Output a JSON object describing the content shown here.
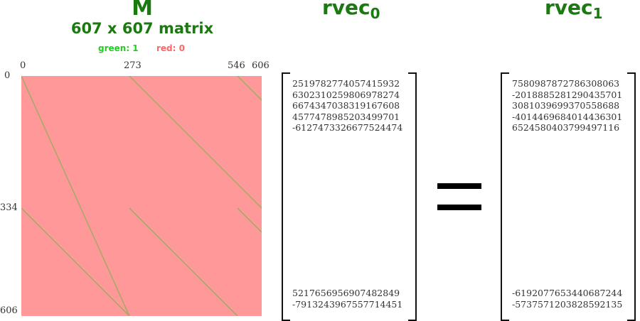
{
  "matrix": {
    "name": "M",
    "dimensions": "607 x 607 matrix",
    "legend": {
      "green_label": "green: 1",
      "red_label": "red: 0"
    },
    "colors": {
      "zero": "#ff9999",
      "one": "#a8a86a",
      "title": "#1a7a10",
      "legend_green": "#22cc22",
      "legend_red": "#ff6666"
    },
    "col_ticks": [
      "0",
      "273",
      "546",
      "606"
    ],
    "row_ticks": [
      "0",
      "334",
      "606"
    ]
  },
  "vectors": [
    {
      "name": "rvec",
      "subscript": "0",
      "top_values": "2519782774057415932\n6302310259806978274\n6674347038319167608\n4577478985203499701\n-6127473326677524474",
      "bottom_values": "5217656956907482849\n-7913243967557714451"
    },
    {
      "name": "rvec",
      "subscript": "1",
      "top_values": "7580987872786308063\n-2018885281290435701\n3081039699370558688\n-4014469684014436301\n6524580403799497116",
      "bottom_values": "-6192077653440687244\n-5737571203828592135"
    }
  ],
  "operator": "="
}
